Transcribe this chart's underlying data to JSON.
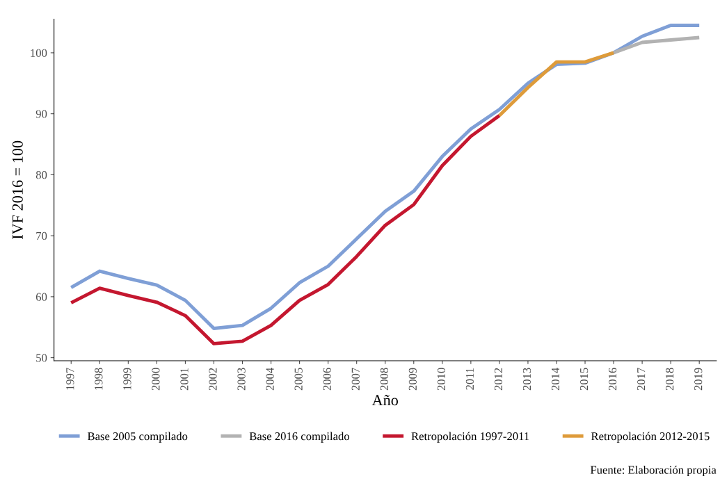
{
  "chart_data": {
    "type": "line",
    "xlabel": "Año",
    "ylabel": "IVF 2016 = 100",
    "categories": [
      "1997",
      "1998",
      "1999",
      "2000",
      "2001",
      "2002",
      "2003",
      "2004",
      "2005",
      "2006",
      "2007",
      "2008",
      "2009",
      "2010",
      "2011",
      "2012",
      "2013",
      "2014",
      "2015",
      "2016",
      "2017",
      "2018",
      "2019"
    ],
    "series": [
      {
        "name": "Base 2005 compilado",
        "color": "#7f9fd6",
        "values": [
          61.5,
          64.2,
          63.0,
          61.9,
          59.4,
          54.8,
          55.3,
          58.1,
          62.3,
          65.0,
          69.5,
          74.0,
          77.3,
          83.0,
          87.5,
          90.7,
          95.0,
          98.1,
          98.3,
          100.0,
          102.7,
          104.5,
          104.5
        ]
      },
      {
        "name": "Base 2016 compilado",
        "color": "#b2b2b2",
        "values": [
          null,
          null,
          null,
          null,
          null,
          null,
          null,
          null,
          null,
          null,
          null,
          null,
          null,
          null,
          null,
          null,
          null,
          null,
          null,
          100.0,
          101.7,
          102.1,
          102.5
        ]
      },
      {
        "name": "Retropolación 1997-2011",
        "color": "#c4172f",
        "values": [
          59.0,
          61.4,
          60.2,
          59.1,
          56.9,
          52.3,
          52.7,
          55.3,
          59.4,
          62.0,
          66.6,
          71.7,
          75.1,
          81.5,
          86.3,
          89.7,
          null,
          null,
          null,
          null,
          null,
          null,
          null
        ]
      },
      {
        "name": "Retropolación 2012-2015",
        "color": "#de9b3a",
        "values": [
          null,
          null,
          null,
          null,
          null,
          null,
          null,
          null,
          null,
          null,
          null,
          null,
          null,
          null,
          null,
          89.7,
          94.3,
          98.5,
          98.5,
          100.0,
          null,
          null,
          null
        ]
      }
    ],
    "ylim": [
      49.5,
      105.5
    ],
    "yticks": [
      50,
      60,
      70,
      80,
      90,
      100
    ],
    "grid": false,
    "legend": "bottom",
    "annotations": [
      "Fuente: Elaboración propia"
    ]
  }
}
